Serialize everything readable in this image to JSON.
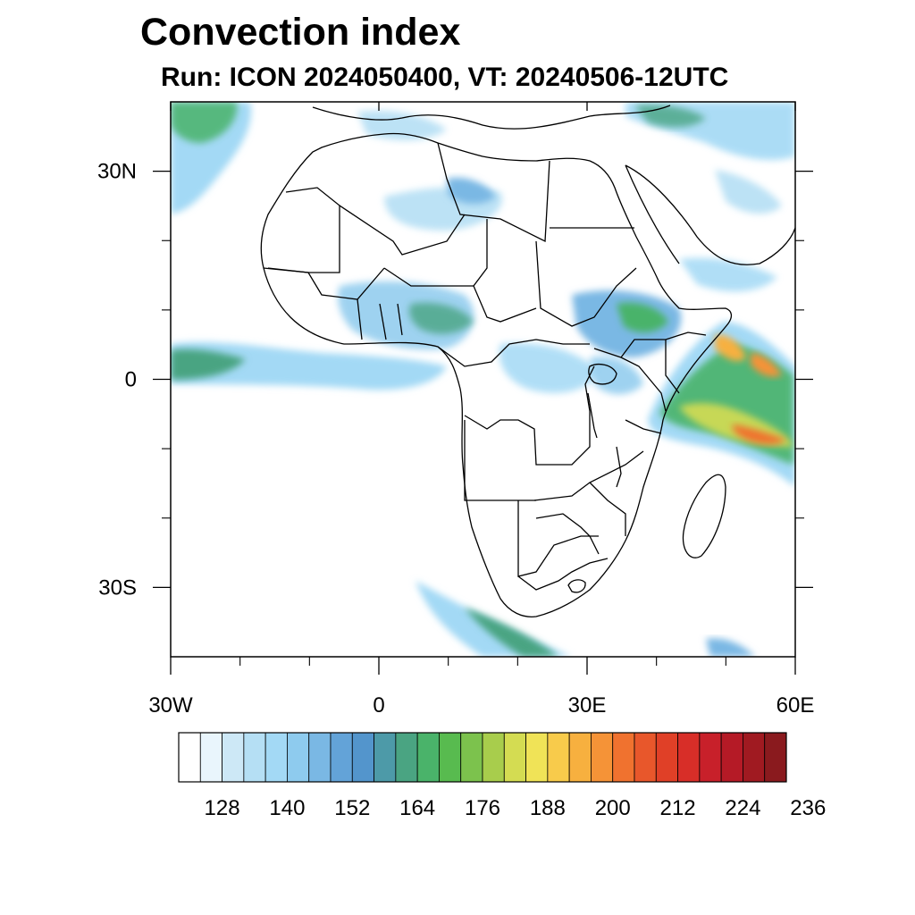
{
  "title": "Convection index",
  "subtitle": "Run: ICON 2024050400,  VT: 20240506-12UTC",
  "map": {
    "lon_range": [
      -30,
      60
    ],
    "lat_range": [
      -40,
      40
    ],
    "lon_ticks": [
      {
        "value": -30,
        "label": "30W"
      },
      {
        "value": 0,
        "label": "0"
      },
      {
        "value": 30,
        "label": "30E"
      },
      {
        "value": 60,
        "label": "60E"
      }
    ],
    "lat_ticks": [
      {
        "value": 30,
        "label": "30N"
      },
      {
        "value": 0,
        "label": "0"
      },
      {
        "value": -30,
        "label": "30S"
      }
    ],
    "minor_lon_ticks": [
      -20,
      -10,
      10,
      20,
      40,
      50
    ],
    "minor_lat_ticks": [
      20,
      10,
      -10,
      -20
    ]
  },
  "colorbar": {
    "colors": [
      "#ffffff",
      "#e9f5fc",
      "#cde8f6",
      "#b5dff4",
      "#a3d9f5",
      "#8ecbee",
      "#7ab8e4",
      "#63a3d8",
      "#5395cc",
      "#4d9aa8",
      "#4aa482",
      "#4ab36a",
      "#58bb4f",
      "#7cc24d",
      "#a8cd4c",
      "#d4dc52",
      "#f0e357",
      "#f8cb4b",
      "#f7b03f",
      "#f59337",
      "#f0722f",
      "#e8572b",
      "#e04027",
      "#d82e28",
      "#c8202a",
      "#b51a26",
      "#a01a21",
      "#8a1a1e"
    ],
    "labels": [
      "128",
      "140",
      "152",
      "164",
      "176",
      "188",
      "200",
      "212",
      "224",
      "236"
    ]
  }
}
